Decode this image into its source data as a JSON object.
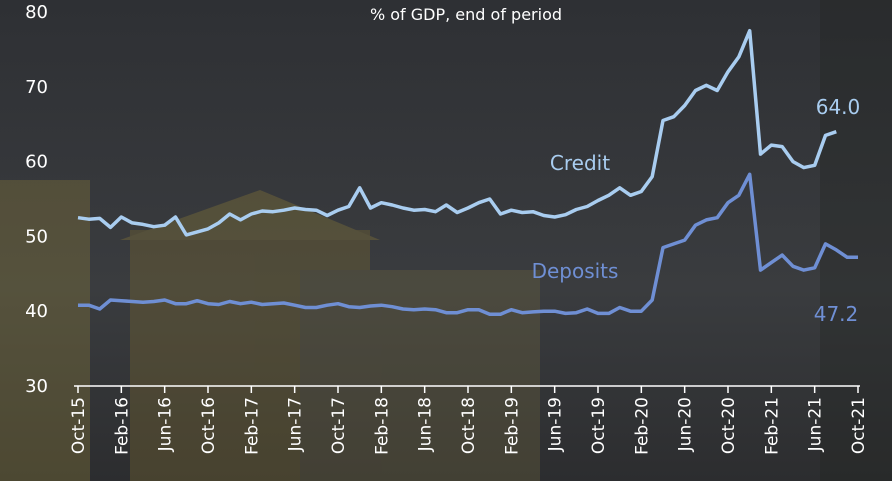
{
  "chart_data": {
    "type": "line",
    "subtitle": "% of GDP, end of period",
    "categories": [
      "Oct-15",
      null,
      null,
      null,
      "Feb-16",
      null,
      null,
      null,
      "Jun-16",
      null,
      null,
      null,
      "Oct-16",
      null,
      null,
      null,
      "Feb-17",
      null,
      null,
      null,
      "Jun-17",
      null,
      null,
      null,
      "Oct-17",
      null,
      null,
      null,
      "Feb-18",
      null,
      null,
      null,
      "Jun-18",
      null,
      null,
      null,
      "Oct-18",
      null,
      null,
      null,
      "Feb-19",
      null,
      null,
      null,
      "Jun-19",
      null,
      null,
      null,
      "Oct-19",
      null,
      null,
      null,
      "Feb-20",
      null,
      null,
      null,
      "Jun-20",
      null,
      null,
      null,
      "Oct-20",
      null,
      null,
      null,
      "Feb-21",
      null,
      null,
      null,
      "Jun-21",
      null,
      null,
      null,
      "Oct-21"
    ],
    "series": [
      {
        "name": "Credit",
        "color": "#a9cdf0",
        "values": [
          52.5,
          52.3,
          52.4,
          51.2,
          52.6,
          51.8,
          51.6,
          51.3,
          51.5,
          52.6,
          50.2,
          50.6,
          51.0,
          51.8,
          53.0,
          52.2,
          53.0,
          53.4,
          53.3,
          53.5,
          53.8,
          53.6,
          53.5,
          52.8,
          53.5,
          54.0,
          56.5,
          53.8,
          54.5,
          54.2,
          53.8,
          53.5,
          53.6,
          53.3,
          54.2,
          53.2,
          53.8,
          54.5,
          55.0,
          53.0,
          53.5,
          53.2,
          53.3,
          52.8,
          52.6,
          52.9,
          53.6,
          54.0,
          54.8,
          55.5,
          56.5,
          55.5,
          56.0,
          58.0,
          65.5,
          66.0,
          67.5,
          69.5,
          70.2,
          69.5,
          72.0,
          74.0,
          77.5,
          61.0,
          62.2,
          62.0,
          60.0,
          59.2,
          59.5,
          63.5,
          64.0,
          null,
          null
        ]
      },
      {
        "name": "Deposits",
        "color": "#6f8fd4",
        "values": [
          40.8,
          40.8,
          40.3,
          41.5,
          41.4,
          41.3,
          41.2,
          41.3,
          41.5,
          41.0,
          41.0,
          41.4,
          41.0,
          40.9,
          41.3,
          41.0,
          41.2,
          40.9,
          41.0,
          41.1,
          40.8,
          40.5,
          40.5,
          40.8,
          41.0,
          40.6,
          40.5,
          40.7,
          40.8,
          40.6,
          40.3,
          40.2,
          40.3,
          40.2,
          39.8,
          39.8,
          40.2,
          40.2,
          39.6,
          39.6,
          40.2,
          39.8,
          39.9,
          40.0,
          40.0,
          39.7,
          39.8,
          40.3,
          39.7,
          39.7,
          40.5,
          40.0,
          40.0,
          41.5,
          48.5,
          49.0,
          49.5,
          51.5,
          52.2,
          52.5,
          54.5,
          55.5,
          58.3,
          45.5,
          46.5,
          47.5,
          46.0,
          45.5,
          45.8,
          49.0,
          48.2,
          47.2,
          47.2
        ]
      }
    ],
    "annotations": [
      {
        "text": "64.0",
        "series": 0
      },
      {
        "text": "47.2",
        "series": 1
      }
    ],
    "ylim": [
      30,
      80
    ],
    "yticks": [
      30,
      40,
      50,
      60,
      70,
      80
    ],
    "grid": false
  }
}
